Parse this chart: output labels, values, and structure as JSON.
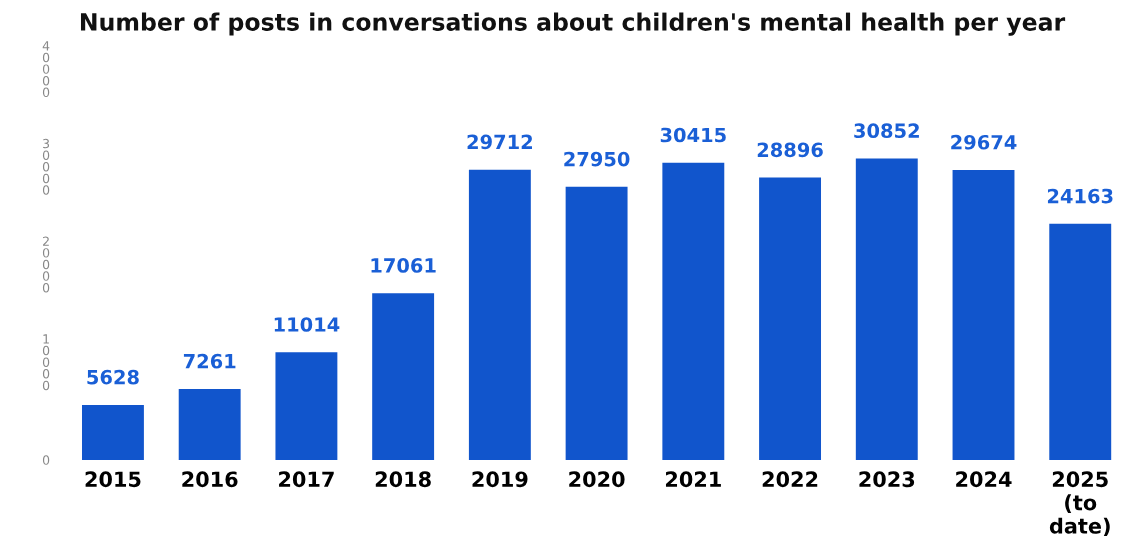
{
  "chart_data": {
    "type": "bar",
    "title": "Number of posts in conversations about children's mental health per year",
    "categories": [
      "2015",
      "2016",
      "2017",
      "2018",
      "2019",
      "2020",
      "2021",
      "2022",
      "2023",
      "2024",
      "2025 (to date)"
    ],
    "values": [
      5628,
      7261,
      11014,
      17061,
      29712,
      27950,
      30415,
      28896,
      30852,
      29674,
      24163
    ],
    "color": "#1155cc",
    "ylim": [
      0,
      40000
    ],
    "yticks": [
      0,
      10000,
      20000,
      30000,
      40000
    ],
    "data_labels": true,
    "grid": false,
    "legend": false
  }
}
